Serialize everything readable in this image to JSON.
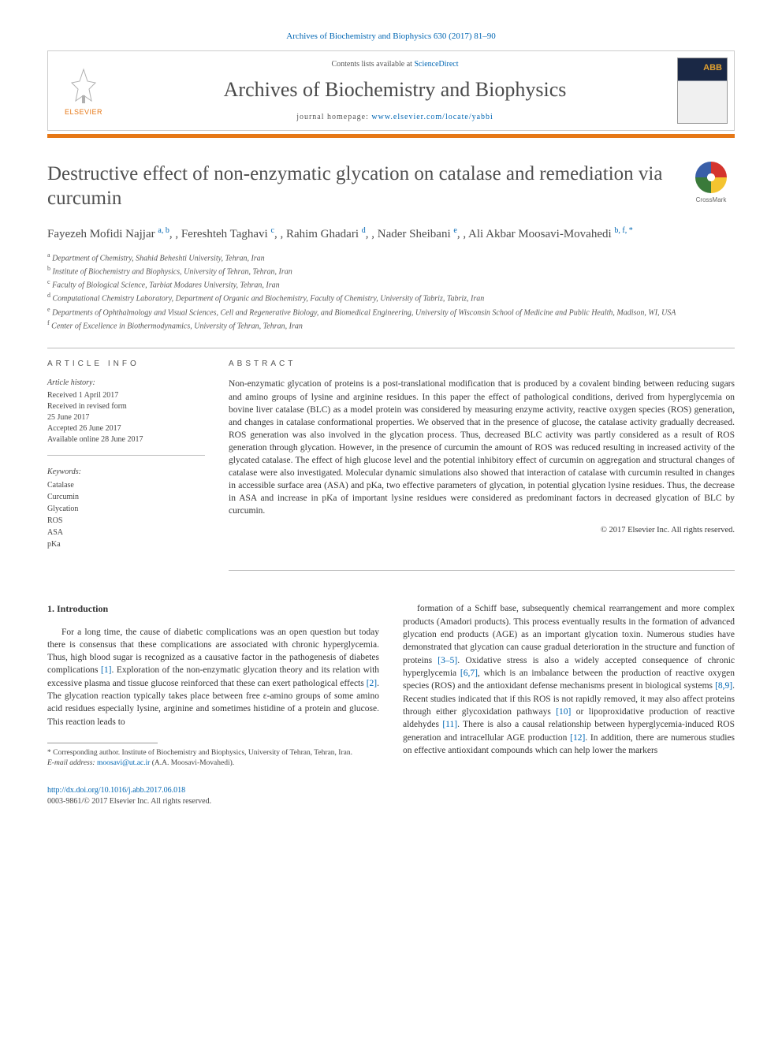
{
  "citation": "Archives of Biochemistry and Biophysics 630 (2017) 81–90",
  "header": {
    "contents_prefix": "Contents lists available at ",
    "contents_link": "ScienceDirect",
    "journal_name": "Archives of Biochemistry and Biophysics",
    "homepage_prefix": "journal homepage: ",
    "homepage_url": "www.elsevier.com/locate/yabbi",
    "publisher_label": "ELSEVIER",
    "cover_abbrev": "ABB"
  },
  "crossmark_label": "CrossMark",
  "title": "Destructive effect of non-enzymatic glycation on catalase and remediation via curcumin",
  "authors_html": "Fayezeh Mofidi Najjar|a, b|, Fereshteh Taghavi|c|, Rahim Ghadari|d|, Nader Sheibani|e|, Ali Akbar Moosavi-Movahedi|b, f, *|",
  "affiliations": [
    "a|Department of Chemistry, Shahid Beheshti University, Tehran, Iran",
    "b|Institute of Biochemistry and Biophysics, University of Tehran, Tehran, Iran",
    "c|Faculty of Biological Science, Tarbiat Modares University, Tehran, Iran",
    "d|Computational Chemistry Laboratory, Department of Organic and Biochemistry, Faculty of Chemistry, University of Tabriz, Tabriz, Iran",
    "e|Departments of Ophthalmology and Visual Sciences, Cell and Regenerative Biology, and Biomedical Engineering, University of Wisconsin School of Medicine and Public Health, Madison, WI, USA",
    "f|Center of Excellence in Biothermodynamics, University of Tehran, Tehran, Iran"
  ],
  "article_info": {
    "heading": "ARTICLE INFO",
    "history_label": "Article history:",
    "history": [
      "Received 1 April 2017",
      "Received in revised form",
      "25 June 2017",
      "Accepted 26 June 2017",
      "Available online 28 June 2017"
    ],
    "keywords_label": "Keywords:",
    "keywords": [
      "Catalase",
      "Curcumin",
      "Glycation",
      "ROS",
      "ASA",
      "pKa"
    ]
  },
  "abstract": {
    "heading": "ABSTRACT",
    "text": "Non-enzymatic glycation of proteins is a post-translational modification that is produced by a covalent binding between reducing sugars and amino groups of lysine and arginine residues. In this paper the effect of pathological conditions, derived from hyperglycemia on bovine liver catalase (BLC) as a model protein was considered by measuring enzyme activity, reactive oxygen species (ROS) generation, and changes in catalase conformational properties. We observed that in the presence of glucose, the catalase activity gradually decreased. ROS generation was also involved in the glycation process. Thus, decreased BLC activity was partly considered as a result of ROS generation through glycation. However, in the presence of curcumin the amount of ROS was reduced resulting in increased activity of the glycated catalase. The effect of high glucose level and the potential inhibitory effect of curcumin on aggregation and structural changes of catalase were also investigated. Molecular dynamic simulations also showed that interaction of catalase with curcumin resulted in changes in accessible surface area (ASA) and pKa, two effective parameters of glycation, in potential glycation lysine residues. Thus, the decrease in ASA and increase in pKa of important lysine residues were considered as predominant factors in decreased glycation of BLC by curcumin.",
    "copyright": "© 2017 Elsevier Inc. All rights reserved."
  },
  "body": {
    "section_heading": "1. Introduction",
    "col1": "For a long time, the cause of diabetic complications was an open question but today there is consensus that these complications are associated with chronic hyperglycemia. Thus, high blood sugar is recognized as a causative factor in the pathogenesis of diabetes complications [1]. Exploration of the non-enzymatic glycation theory and its relation with excessive plasma and tissue glucose reinforced that these can exert pathological effects [2]. The glycation reaction typically takes place between free ε-amino groups of some amino acid residues especially lysine, arginine and sometimes histidine of a protein and glucose. This reaction leads to",
    "col2": "formation of a Schiff base, subsequently chemical rearrangement and more complex products (Amadori products). This process eventually results in the formation of advanced glycation end products (AGE) as an important glycation toxin. Numerous studies have demonstrated that glycation can cause gradual deterioration in the structure and function of proteins [3–5]. Oxidative stress is also a widely accepted consequence of chronic hyperglycemia [6,7], which is an imbalance between the production of reactive oxygen species (ROS) and the antioxidant defense mechanisms present in biological systems [8,9]. Recent studies indicated that if this ROS is not rapidly removed, it may also affect proteins through either glycoxidation pathways [10] or lipoproxidative production of reactive aldehydes [11]. There is also a causal relationship between hyperglycemia-induced ROS generation and intracellular AGE production [12]. In addition, there are numerous studies on effective antioxidant compounds which can help lower the markers"
  },
  "footnote": {
    "corr": "* Corresponding author. Institute of Biochemistry and Biophysics, University of Tehran, Tehran, Iran.",
    "email_label": "E-mail address: ",
    "email": "moosavi@ut.ac.ir",
    "email_suffix": " (A.A. Moosavi-Movahedi)."
  },
  "footer": {
    "doi": "http://dx.doi.org/10.1016/j.abb.2017.06.018",
    "issn_line": "0003-9861/© 2017 Elsevier Inc. All rights reserved."
  },
  "colors": {
    "link": "#0066b3",
    "accent": "#e67817",
    "text": "#333333"
  }
}
